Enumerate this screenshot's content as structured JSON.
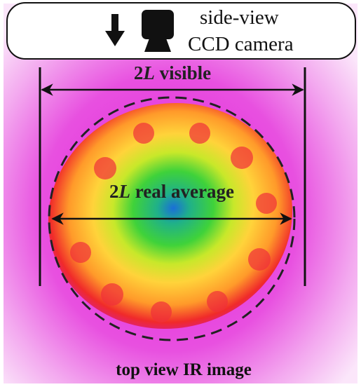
{
  "header": {
    "line1": "side-view",
    "line2": "CCD camera"
  },
  "labels": {
    "visible": {
      "prefix": "2",
      "variable": "L",
      "rest": " visible"
    },
    "real_average": {
      "prefix": "2",
      "variable": "L",
      "rest": " real average"
    },
    "caption": "top view IR image"
  }
}
